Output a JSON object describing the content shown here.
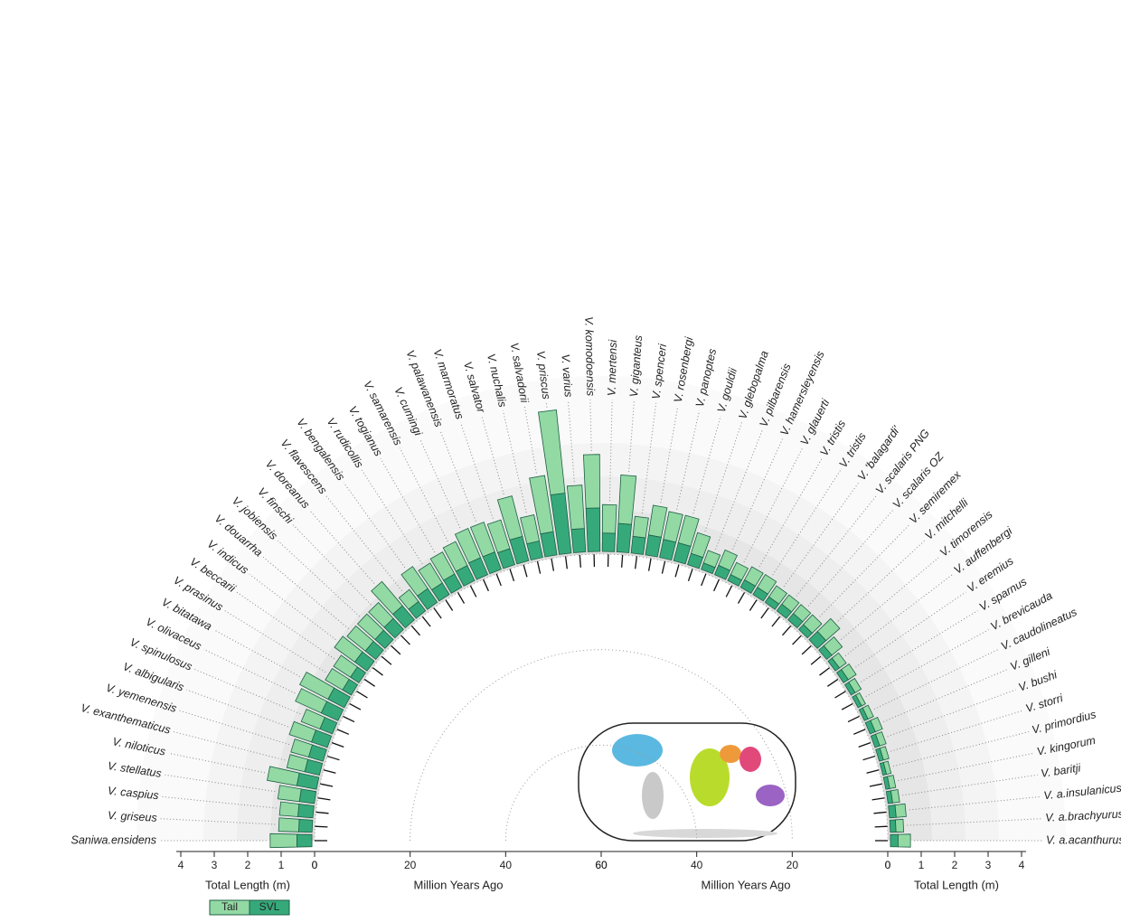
{
  "chart_data": {
    "type": "radial-bar",
    "categories": [
      "Saniwa.ensidens",
      "V. griseus",
      "V. caspius",
      "V. stellatus",
      "V. niloticus",
      "V. exanthematicus",
      "V. yemenensis",
      "V. albigularis",
      "V. spinulosus",
      "V. olivaceus",
      "V. bitatawa",
      "V. prasinus",
      "V. beccarii",
      "V. indicus",
      "V. douarrha",
      "V. jobiensis",
      "V. finschi",
      "V. doreanus",
      "V. flavescens",
      "V. bengalensis",
      "V. rudicollis",
      "V. togianus",
      "V. samarensis",
      "V. cumingi",
      "V. palawanensis",
      "V. marmoratus",
      "V. salvator",
      "V. nuchalis",
      "V. salvadorii",
      "V. priscus",
      "V. varius",
      "V. komodoensis",
      "V. mertensi",
      "V. giganteus",
      "V. spenceri",
      "V. rosenbergi",
      "V. panoptes",
      "V. gouldii",
      "V. glebopalma",
      "V. pilbarensis",
      "V. hamersleyensis",
      "V. glauerti",
      "V. tristis",
      "V. tristis",
      "V. 'balagardi'",
      "V. scalaris PNG",
      "V. scalaris OZ",
      "V. semiremex",
      "V. mitchelli",
      "V. timorensis",
      "V. auffenbergi",
      "V. eremius",
      "V. sparnus",
      "V. brevicauda",
      "V. caudolineatus",
      "V. gilleni",
      "V. bushi",
      "V. storri",
      "V. primordius",
      "V. kingorum",
      "V. baritji",
      "V. a.insulanicus",
      "V. a.brachyurus",
      "V. a.acanthurus"
    ],
    "series": [
      {
        "name": "Tail",
        "color": "#93d9a4",
        "values": [
          0.8,
          0.6,
          0.55,
          0.65,
          0.9,
          0.55,
          0.55,
          0.7,
          0.6,
          0.85,
          0.95,
          0.6,
          0.6,
          0.75,
          0.7,
          0.7,
          0.65,
          0.95,
          0.45,
          0.8,
          0.7,
          0.75,
          0.8,
          0.95,
          0.95,
          0.9,
          1.25,
          0.8,
          1.7,
          2.5,
          1.3,
          1.6,
          0.85,
          1.45,
          0.6,
          0.9,
          0.85,
          0.85,
          0.65,
          0.4,
          0.5,
          0.4,
          0.45,
          0.45,
          0.4,
          0.35,
          0.35,
          0.4,
          0.55,
          0.4,
          0.25,
          0.28,
          0.21,
          0.13,
          0.18,
          0.23,
          0.2,
          0.17,
          0.14,
          0.18,
          0.21,
          0.3,
          0.23,
          0.37
        ]
      },
      {
        "name": "SVL",
        "color": "#36a97b",
        "values": [
          0.45,
          0.4,
          0.45,
          0.45,
          0.6,
          0.45,
          0.45,
          0.5,
          0.4,
          0.55,
          0.55,
          0.3,
          0.3,
          0.45,
          0.4,
          0.4,
          0.45,
          0.55,
          0.35,
          0.5,
          0.4,
          0.45,
          0.5,
          0.55,
          0.55,
          0.5,
          0.75,
          0.5,
          0.7,
          1.8,
          0.7,
          1.3,
          0.55,
          0.85,
          0.5,
          0.6,
          0.55,
          0.55,
          0.35,
          0.2,
          0.3,
          0.2,
          0.25,
          0.25,
          0.2,
          0.25,
          0.25,
          0.2,
          0.35,
          0.2,
          0.15,
          0.17,
          0.14,
          0.12,
          0.12,
          0.17,
          0.15,
          0.13,
          0.11,
          0.12,
          0.14,
          0.2,
          0.17,
          0.23
        ]
      }
    ],
    "ylabel": "Total Length (m)",
    "ylim": [
      0,
      4
    ],
    "yticks": [
      0,
      1,
      2,
      3,
      4
    ],
    "xlabel": "Million Years Ago",
    "xlim": [
      0,
      60
    ],
    "xticks": [
      0,
      20,
      40,
      60
    ]
  }
}
